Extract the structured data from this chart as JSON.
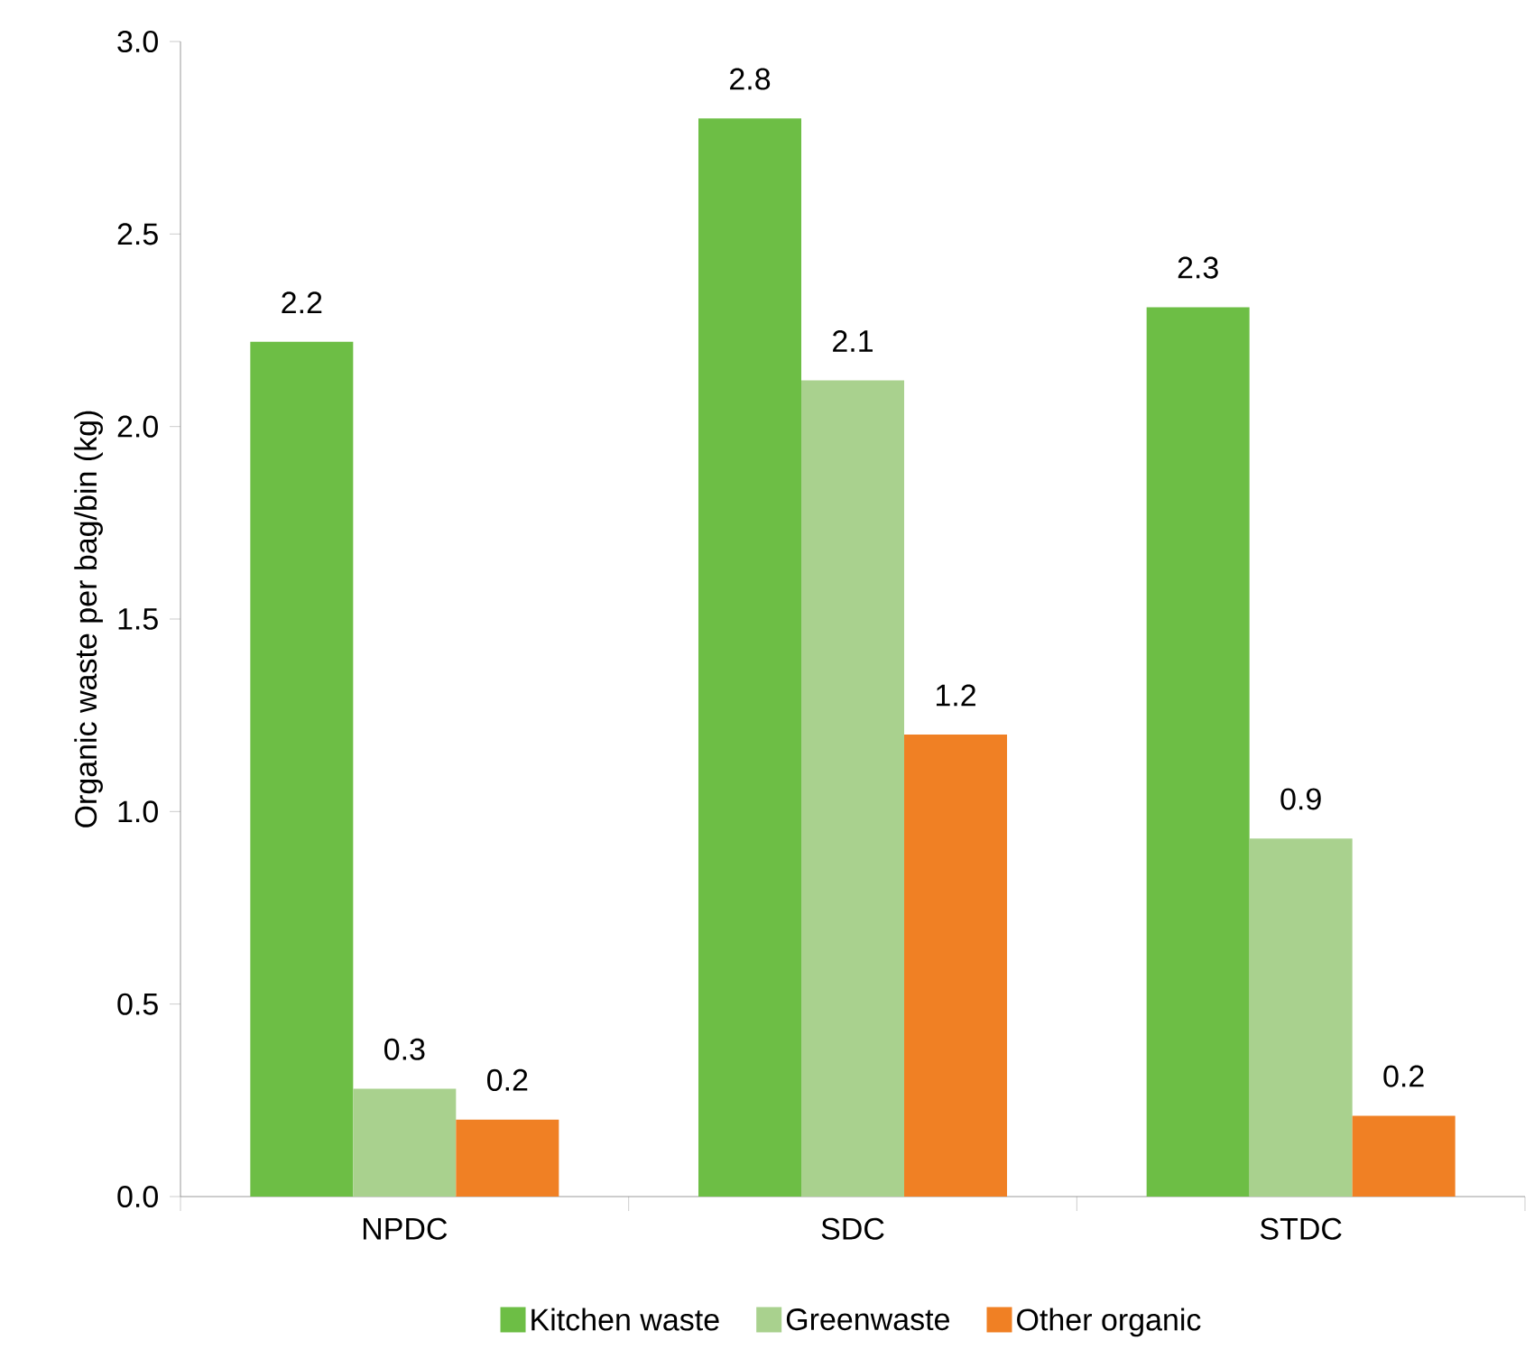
{
  "chart_data": {
    "type": "bar",
    "ylabel": "Organic waste per bag/bin (kg)",
    "categories": [
      "NPDC",
      "SDC",
      "STDC"
    ],
    "series": [
      {
        "name": "Kitchen waste",
        "color": "#6dbe45",
        "values": [
          2.22,
          2.8,
          2.31
        ],
        "value_labels": [
          "2.2",
          "2.8",
          "2.3"
        ]
      },
      {
        "name": "Greenwaste",
        "color": "#a9d18e",
        "values": [
          0.28,
          2.12,
          0.93
        ],
        "value_labels": [
          "0.3",
          "2.1",
          "0.9"
        ]
      },
      {
        "name": "Other organic",
        "color": "#f08024",
        "values": [
          0.2,
          1.2,
          0.21
        ],
        "value_labels": [
          "0.2",
          "1.2",
          "0.2"
        ]
      }
    ],
    "ylim": [
      0,
      3
    ],
    "yticks": [
      {
        "value": 0,
        "label": "0.0"
      },
      {
        "value": 0.5,
        "label": "0.5"
      },
      {
        "value": 1,
        "label": "1.0"
      },
      {
        "value": 1.5,
        "label": "1.5"
      },
      {
        "value": 2,
        "label": "2.0"
      },
      {
        "value": 2.5,
        "label": "2.5"
      },
      {
        "value": 3,
        "label": "3.0"
      }
    ],
    "grid": false,
    "legend": "bottom"
  }
}
